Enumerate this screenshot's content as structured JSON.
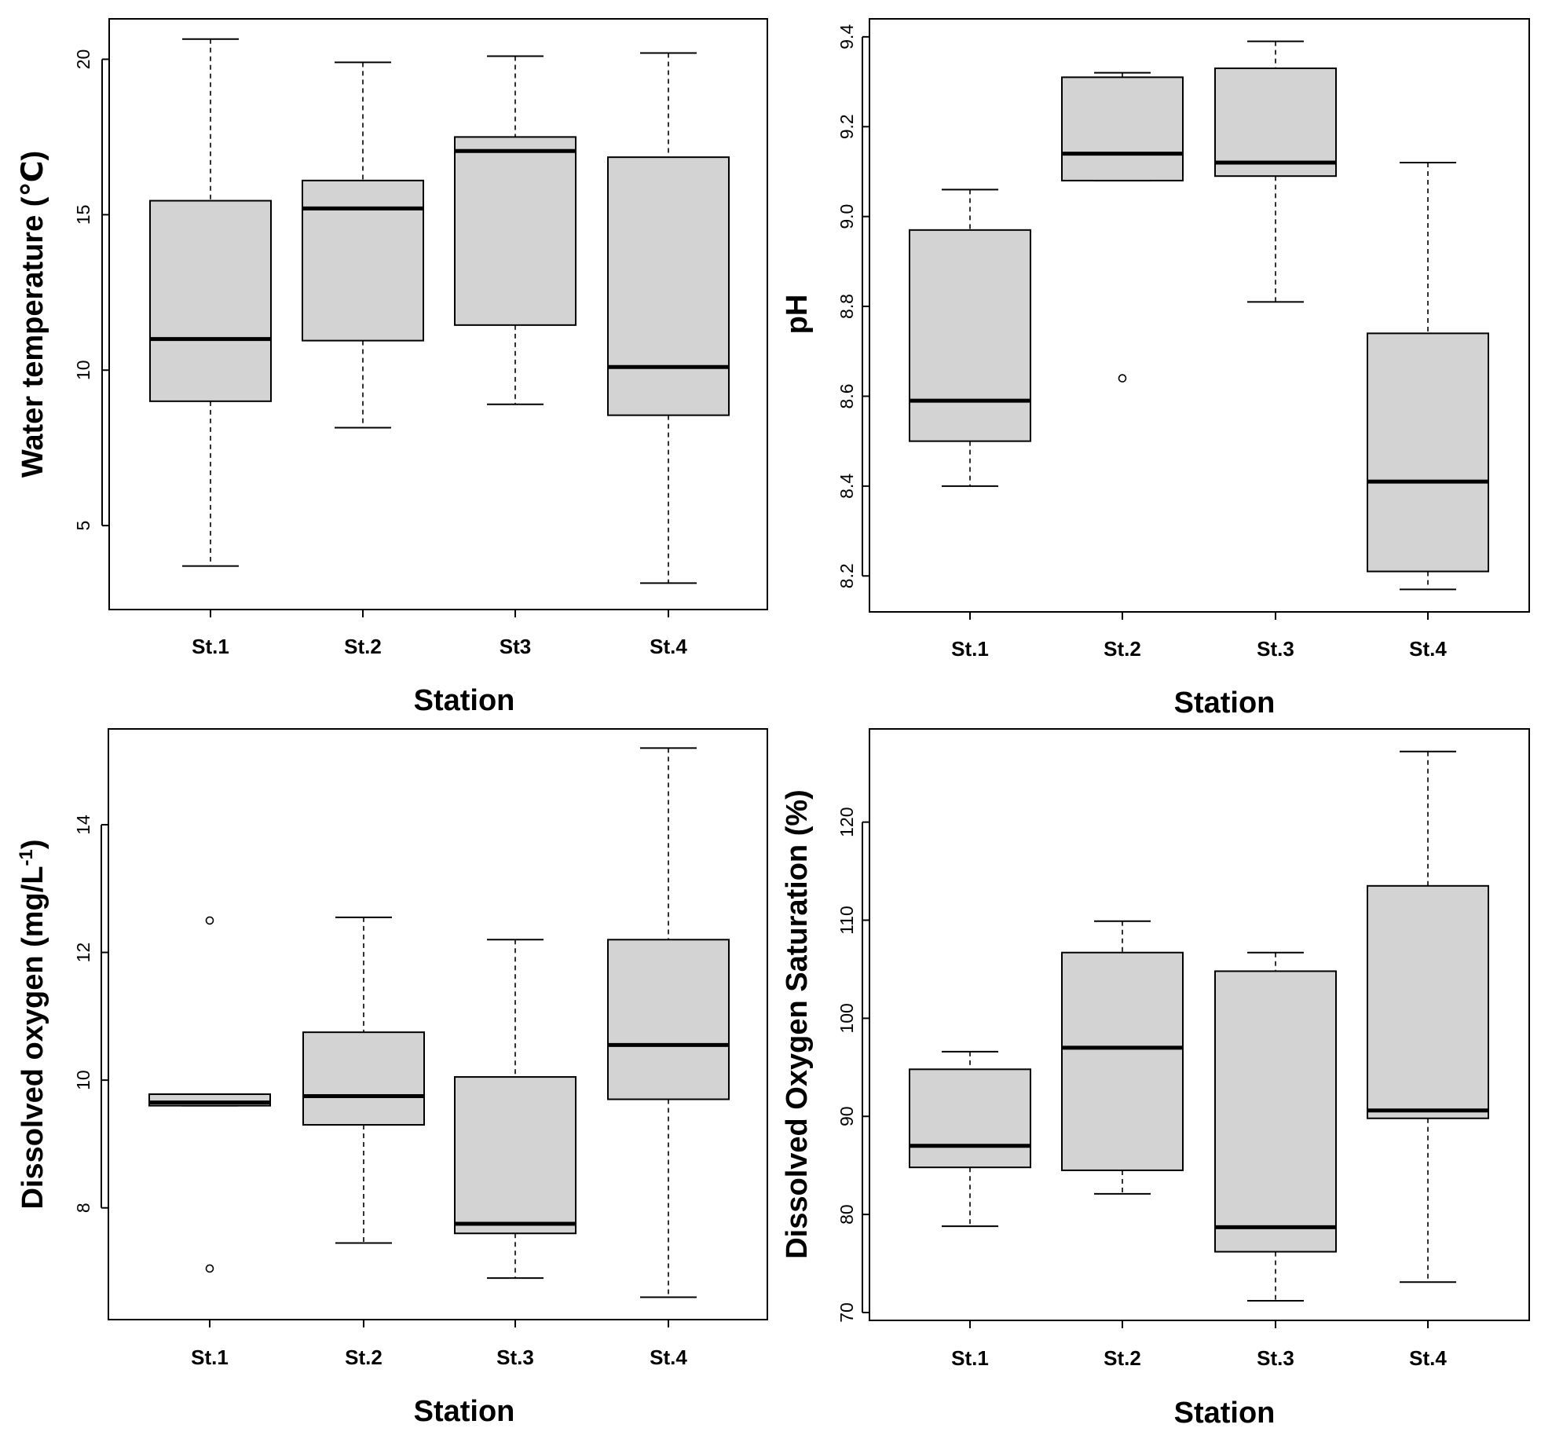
{
  "colors": {
    "box_fill": "#d3d3d3",
    "stroke": "#000000",
    "background": "#ffffff"
  },
  "chart_data": [
    {
      "type": "boxplot",
      "title": "",
      "xlabel": "Station",
      "ylabel": "Water temperature (℃)",
      "ylabel_parts": [
        [
          "Water temperature (℃)",
          ""
        ]
      ],
      "categories": [
        "St.1",
        "St.2",
        "St3",
        "St.4"
      ],
      "ylim": [
        2.3,
        21.3
      ],
      "yticks": [
        5,
        10,
        15,
        20
      ],
      "ytick_labels": [
        "5",
        "10",
        "15",
        "20"
      ],
      "boxes": [
        {
          "min": 3.7,
          "q1": 9.0,
          "median": 11.0,
          "q3": 15.45,
          "max": 20.65,
          "outliers": []
        },
        {
          "min": 8.15,
          "q1": 10.95,
          "median": 15.2,
          "q3": 16.1,
          "max": 19.9,
          "outliers": []
        },
        {
          "min": 8.9,
          "q1": 11.45,
          "median": 17.05,
          "q3": 17.5,
          "max": 20.1,
          "outliers": []
        },
        {
          "min": 3.15,
          "q1": 8.55,
          "median": 10.1,
          "q3": 16.85,
          "max": 20.2,
          "outliers": []
        }
      ]
    },
    {
      "type": "boxplot",
      "title": "",
      "xlabel": "Station",
      "ylabel": "pH",
      "ylabel_parts": [
        [
          "pH",
          ""
        ]
      ],
      "categories": [
        "St.1",
        "St.2",
        "St.3",
        "St.4"
      ],
      "ylim": [
        8.12,
        9.44
      ],
      "yticks": [
        8.2,
        8.4,
        8.6,
        8.8,
        9.0,
        9.2,
        9.4
      ],
      "ytick_labels": [
        "8.2",
        "8.4",
        "8.6",
        "8.8",
        "9.0",
        "9.2",
        "9.4"
      ],
      "boxes": [
        {
          "min": 8.4,
          "q1": 8.5,
          "median": 8.59,
          "q3": 8.97,
          "max": 9.06,
          "outliers": []
        },
        {
          "min": 9.08,
          "q1": 9.08,
          "median": 9.14,
          "q3": 9.31,
          "max": 9.32,
          "outliers": [
            8.64
          ]
        },
        {
          "min": 8.81,
          "q1": 9.09,
          "median": 9.12,
          "q3": 9.33,
          "max": 9.39,
          "outliers": []
        },
        {
          "min": 8.17,
          "q1": 8.21,
          "median": 8.41,
          "q3": 8.74,
          "max": 9.12,
          "outliers": []
        }
      ]
    },
    {
      "type": "boxplot",
      "title": "",
      "xlabel": "Station",
      "ylabel": "Dissolved oxygen (mg/L-1)",
      "ylabel_parts": [
        [
          "Dissolved oxygen (mg/L",
          ""
        ],
        [
          "-1",
          "sup"
        ],
        [
          ")",
          ""
        ]
      ],
      "categories": [
        "St.1",
        "St.2",
        "St.3",
        "St.4"
      ],
      "ylim": [
        6.25,
        15.5
      ],
      "yticks": [
        8,
        10,
        12,
        14
      ],
      "ytick_labels": [
        "8",
        "10",
        "12",
        "14"
      ],
      "boxes": [
        {
          "min": 9.6,
          "q1": 9.6,
          "median": 9.65,
          "q3": 9.78,
          "max": 9.78,
          "outliers": [
            12.5,
            7.05
          ]
        },
        {
          "min": 7.45,
          "q1": 9.3,
          "median": 9.75,
          "q3": 10.75,
          "max": 12.55,
          "outliers": []
        },
        {
          "min": 6.9,
          "q1": 7.6,
          "median": 7.75,
          "q3": 10.05,
          "max": 12.2,
          "outliers": []
        },
        {
          "min": 6.6,
          "q1": 9.7,
          "median": 10.55,
          "q3": 12.2,
          "max": 15.2,
          "outliers": []
        }
      ]
    },
    {
      "type": "boxplot",
      "title": "",
      "xlabel": "Station",
      "ylabel": "Dissolved Oxygen Saturation (%)",
      "ylabel_parts": [
        [
          "Dissolved Oxygen Saturation (%)",
          ""
        ]
      ],
      "categories": [
        "St.1",
        "St.2",
        "St.3",
        "St.4"
      ],
      "ylim": [
        69.2,
        129.5
      ],
      "yticks": [
        70,
        80,
        90,
        100,
        110,
        120
      ],
      "ytick_labels": [
        "70",
        "80",
        "90",
        "100",
        "110",
        "120"
      ],
      "boxes": [
        {
          "min": 78.8,
          "q1": 84.8,
          "median": 87.0,
          "q3": 94.8,
          "max": 96.6,
          "outliers": []
        },
        {
          "min": 82.1,
          "q1": 84.5,
          "median": 97.0,
          "q3": 106.7,
          "max": 109.9,
          "outliers": []
        },
        {
          "min": 71.2,
          "q1": 76.2,
          "median": 78.7,
          "q3": 104.8,
          "max": 106.7,
          "outliers": []
        },
        {
          "min": 73.1,
          "q1": 89.8,
          "median": 90.6,
          "q3": 113.5,
          "max": 127.2,
          "outliers": []
        }
      ]
    }
  ]
}
